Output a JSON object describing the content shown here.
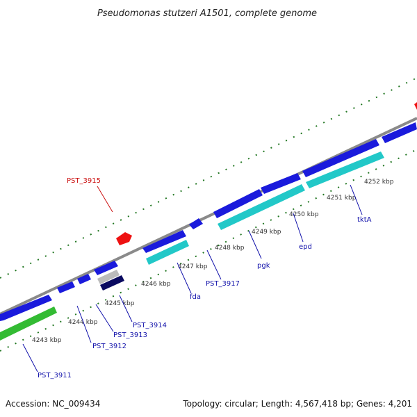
{
  "title": "Pseudomonas stutzeri A1501, complete genome",
  "footer": {
    "accession": "Accession: NC_009434",
    "topology": "Topology: circular; Length: 4,567,418 bp; Genes: 4,201"
  },
  "scale": {
    "unit": "kbp",
    "ticks": [
      "4243 kbp",
      "4244 kbp",
      "4245 kbp",
      "4246 kbp",
      "4247 kbp",
      "4248 kbp",
      "4249 kbp",
      "4250 kbp",
      "4251 kbp",
      "4252 kbp"
    ]
  },
  "colors": {
    "backbone": "#8a8a8a",
    "cds_blue": "#1a1adc",
    "cds_cyan": "#22c8c8",
    "cds_green": "#33bb33",
    "cds_red": "#ee1111",
    "cds_navy": "#0a0a60",
    "cds_grey": "#bbbbbb",
    "tick_green": "#227722",
    "label_blue": "#1111aa",
    "label_red": "#cc1111"
  },
  "gene_labels": [
    {
      "id": "PST_3915",
      "text": "PST_3915",
      "color": "#cc1111"
    },
    {
      "id": "PST_3911",
      "text": "PST_3911",
      "color": "#1111aa"
    },
    {
      "id": "PST_3912",
      "text": "PST_3912",
      "color": "#1111aa"
    },
    {
      "id": "PST_3913",
      "text": "PST_3913",
      "color": "#1111aa"
    },
    {
      "id": "PST_3914",
      "text": "PST_3914",
      "color": "#1111aa"
    },
    {
      "id": "fda",
      "text": "fda",
      "color": "#1111aa"
    },
    {
      "id": "PST_3917",
      "text": "PST_3917",
      "color": "#1111aa"
    },
    {
      "id": "pgk",
      "text": "pgk",
      "color": "#1111aa"
    },
    {
      "id": "epd",
      "text": "epd",
      "color": "#1111aa"
    },
    {
      "id": "tktA",
      "text": "tktA",
      "color": "#1111aa"
    }
  ]
}
